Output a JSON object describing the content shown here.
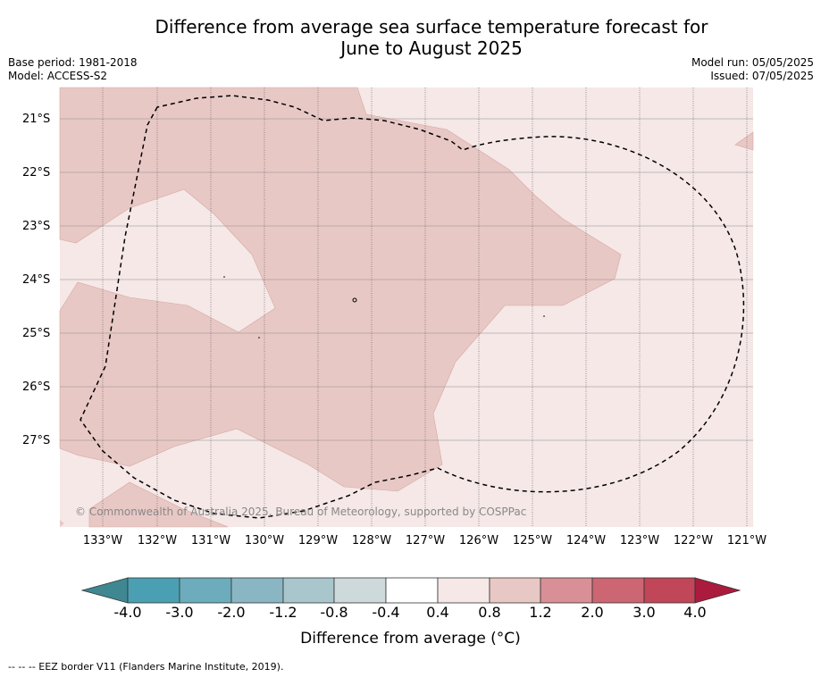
{
  "title_line1": "Difference from average sea surface temperature forecast for",
  "title_line2": "June to August 2025",
  "base_period": "Base period: 1981-2018",
  "model": "Model: ACCESS-S2",
  "model_run": "Model run: 05/05/2025",
  "issued": "Issued: 07/05/2025",
  "copyright": "© Commonwealth of Australia 2025, Bureau of Meteorology, supported by COSPPac",
  "lat_labels": [
    "21°S",
    "22°S",
    "23°S",
    "24°S",
    "25°S",
    "26°S",
    "27°S"
  ],
  "lon_labels": [
    "133°W",
    "132°W",
    "131°W",
    "130°W",
    "129°W",
    "128°W",
    "127°W",
    "126°W",
    "125°W",
    "124°W",
    "123°W",
    "122°W",
    "121°W"
  ],
  "colorbar": {
    "label": "Difference from average (°C)",
    "ticks": [
      "-4.0",
      "-3.0",
      "-2.0",
      "-1.2",
      "-0.8",
      "-0.4",
      "0.4",
      "0.8",
      "1.2",
      "2.0",
      "3.0",
      "4.0"
    ],
    "colors": [
      "#3f8791",
      "#4aa0b2",
      "#6cacbc",
      "#8ab6c4",
      "#a8c6cc",
      "#ced9dc",
      "#ffffff",
      "#f5e8e7",
      "#e8c8c5",
      "#d98f96",
      "#cc6672",
      "#c04658",
      "#ab1b3d"
    ]
  },
  "map_colors": {
    "light": "#f5e8e7",
    "medium": "#e8c8c5",
    "border": "#000000"
  },
  "footnote": "--  --  -- EEZ border V11 (Flanders Marine Institute, 2019)."
}
